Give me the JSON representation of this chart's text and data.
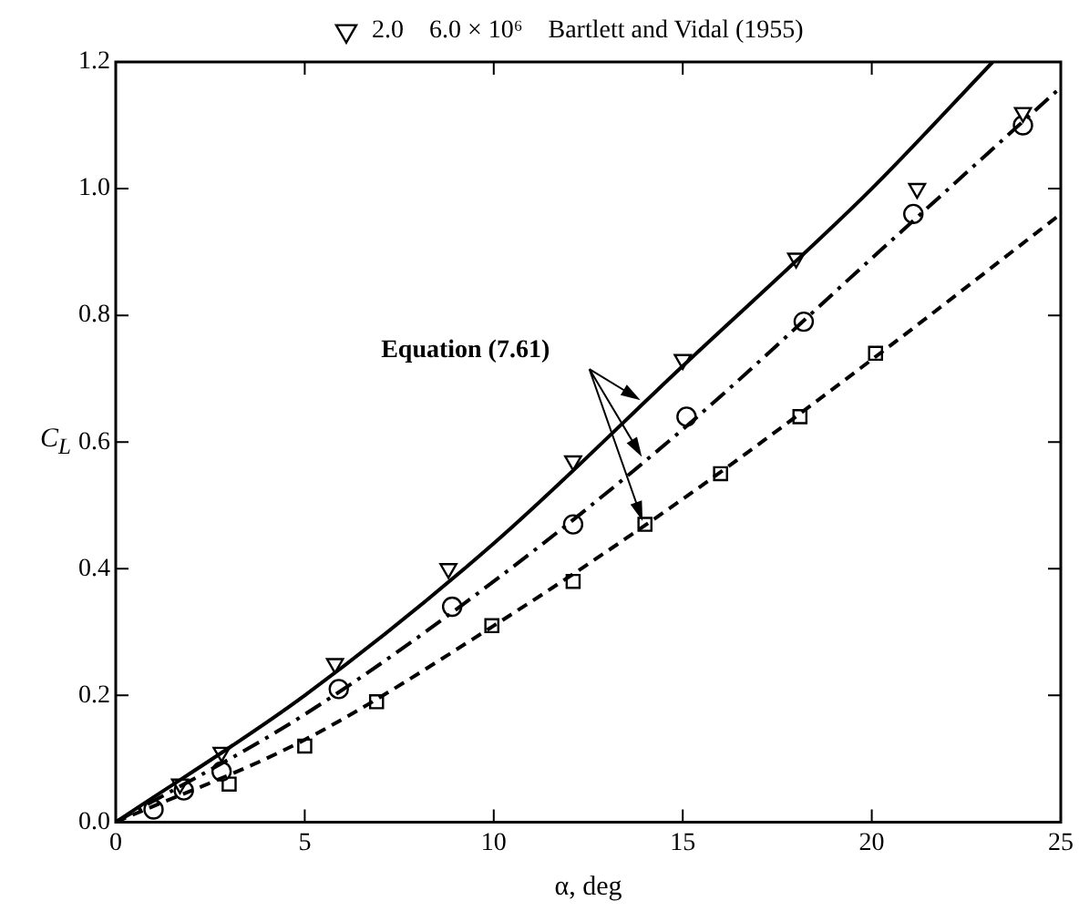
{
  "chart_data": {
    "type": "scatter",
    "xlabel": "α, deg",
    "ylabel": "C$_{L}$",
    "xlim": [
      0,
      25
    ],
    "ylim": [
      0,
      1.2
    ],
    "xticks": [
      0,
      5,
      10,
      15,
      20,
      25
    ],
    "yticks": [
      {
        "value": 0,
        "label": "0.0"
      },
      {
        "value": 0.2,
        "label": "0.2"
      },
      {
        "value": 0.4,
        "label": "0.4"
      },
      {
        "value": 0.6,
        "label": "0.6"
      },
      {
        "value": 0.8,
        "label": "0.8"
      },
      {
        "value": 1.0,
        "label": "1.0"
      },
      {
        "value": 1.2,
        "label": "1.2"
      }
    ],
    "grid": false,
    "legend": "top",
    "annotations": [
      "Equation (7.61)"
    ],
    "series": [
      {
        "type": "line",
        "color": "#000000",
        "line_style": "solid",
        "marker": "none",
        "x": [
          0,
          5,
          10,
          15,
          20,
          23.2
        ],
        "values": [
          0,
          0.2,
          0.44,
          0.72,
          1.0,
          1.2
        ]
      },
      {
        "type": "line",
        "color": "#000000",
        "line_style": "dashdot",
        "marker": "none",
        "x": [
          0,
          5,
          10,
          15,
          20,
          25
        ],
        "values": [
          0,
          0.17,
          0.38,
          0.62,
          0.89,
          1.16
        ]
      },
      {
        "type": "line",
        "color": "#000000",
        "line_style": "dashed",
        "marker": "none",
        "x": [
          0,
          5,
          10,
          15,
          20,
          25
        ],
        "values": [
          0,
          0.13,
          0.31,
          0.51,
          0.73,
          0.96
        ]
      },
      {
        "type": "scatter",
        "name": "2.0    6.0 × 10⁶    Bartlett and Vidal (1955)",
        "color": "#000000",
        "marker": "triangle",
        "x": [
          1.7,
          2.8,
          5.8,
          8.8,
          12.1,
          15,
          18,
          21.2,
          24
        ],
        "values": [
          0.06,
          0.11,
          0.25,
          0.4,
          0.57,
          0.73,
          0.89,
          1.0,
          1.12
        ]
      },
      {
        "type": "scatter",
        "color": "#000000",
        "marker": "circle",
        "x": [
          1,
          1.8,
          2.8,
          5.9,
          8.9,
          12.1,
          15.1,
          18.2,
          21.1,
          24
        ],
        "values": [
          0.02,
          0.05,
          0.08,
          0.21,
          0.34,
          0.47,
          0.64,
          0.79,
          0.96,
          1.1
        ]
      },
      {
        "type": "scatter",
        "color": "#000000",
        "marker": "square",
        "x": [
          3,
          5,
          6.9,
          9.95,
          12.1,
          14,
          16,
          18.1,
          20.1
        ],
        "values": [
          0.06,
          0.12,
          0.19,
          0.31,
          0.38,
          0.47,
          0.55,
          0.64,
          0.74
        ]
      }
    ]
  }
}
